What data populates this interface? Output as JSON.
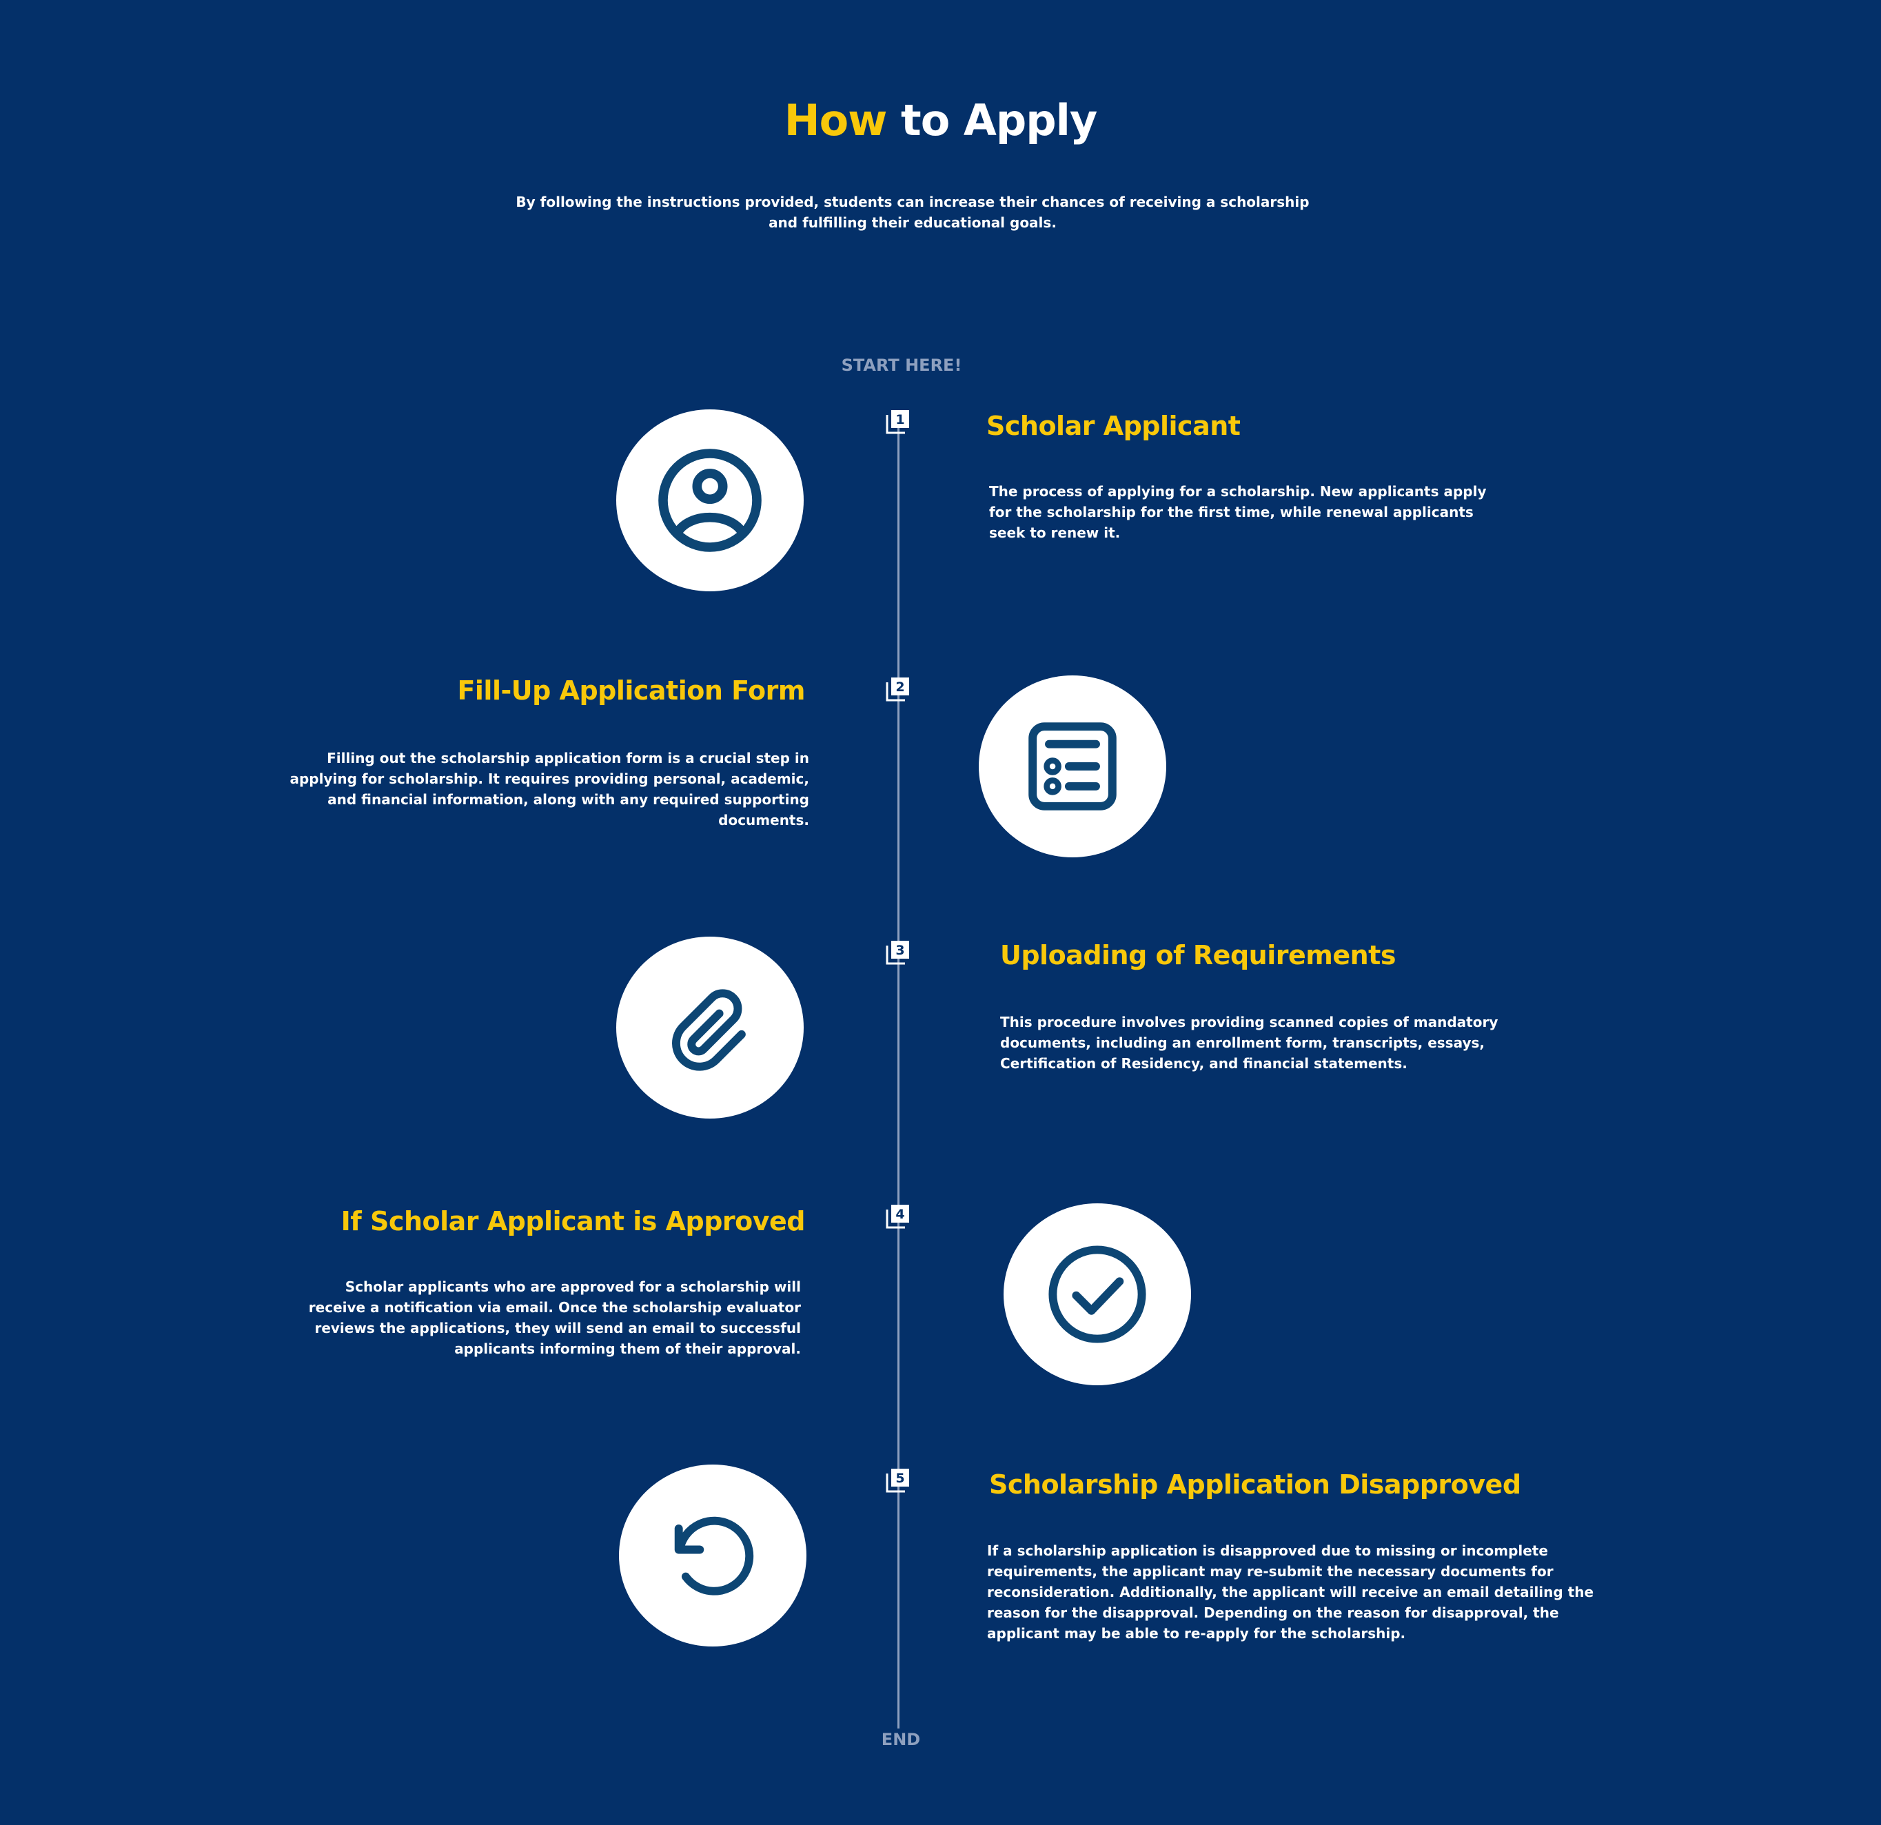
{
  "header": {
    "title_highlight": "How",
    "title_rest": " to Apply",
    "subtitle": "By following the instructions provided, students can increase their chances of receiving a scholarship and fulfilling their educational goals."
  },
  "timeline": {
    "start_label": "START HERE!",
    "end_label": "END"
  },
  "steps": [
    {
      "number": "1",
      "title": "Scholar Applicant",
      "description": "The process of applying for a scholarship. New applicants apply for the scholarship for the first time, while renewal applicants seek to renew it.",
      "icon": "user-circle-icon"
    },
    {
      "number": "2",
      "title": "Fill-Up Application Form",
      "description": "Filling out the scholarship application form is a crucial step in applying for scholarship. It requires providing personal, academic, and financial information, along with any required supporting documents.",
      "icon": "form-list-icon"
    },
    {
      "number": "3",
      "title": "Uploading of Requirements",
      "description": "This procedure involves providing scanned copies of mandatory documents, including an enrollment form, transcripts, essays, Certification of Residency, and financial statements.",
      "icon": "paperclip-icon"
    },
    {
      "number": "4",
      "title": "If Scholar Applicant is Approved",
      "description": "Scholar applicants who are approved for a scholarship will receive a notification via email. Once the scholarship evaluator reviews the applications, they will send an email to successful applicants informing them of their approval.",
      "icon": "check-circle-icon"
    },
    {
      "number": "5",
      "title": "Scholarship Application Disapproved",
      "description": "If a scholarship application is disapproved due to missing or incomplete requirements, the applicant may re-submit the necessary documents for reconsideration. Additionally, the applicant will receive an email detailing the reason for the disapproval. Depending on the reason for disapproval, the applicant may be able to re-apply for the scholarship.",
      "icon": "refresh-icon"
    }
  ],
  "colors": {
    "background": "#043069",
    "accent": "#f9c80a",
    "icon": "#0d4674",
    "line": "#8ea0bf"
  }
}
